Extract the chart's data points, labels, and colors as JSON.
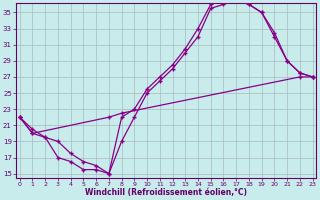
{
  "xlabel": "Windchill (Refroidissement éolien,°C)",
  "background_color": "#c8ecec",
  "line_color": "#880088",
  "grid_color": "#aabbbb",
  "xlim": [
    -0.3,
    23.3
  ],
  "ylim": [
    14.5,
    36.2
  ],
  "yticks": [
    15,
    17,
    19,
    21,
    23,
    25,
    27,
    29,
    31,
    33,
    35
  ],
  "xticks": [
    0,
    1,
    2,
    3,
    4,
    5,
    6,
    7,
    8,
    9,
    10,
    11,
    12,
    13,
    14,
    15,
    16,
    17,
    18,
    19,
    20,
    21,
    22,
    23
  ],
  "curve1_x": [
    0,
    1,
    2,
    3,
    4,
    5,
    6,
    7,
    8,
    9,
    10,
    11,
    12,
    13,
    14,
    15,
    16,
    17,
    18,
    19,
    20,
    21,
    22,
    23
  ],
  "curve1_y": [
    22,
    20,
    19.5,
    17,
    16.5,
    15.5,
    15.5,
    15,
    19,
    22,
    25,
    26.5,
    28,
    30,
    32,
    35.5,
    36,
    36.5,
    36,
    35,
    32,
    29,
    27.5,
    27
  ],
  "curve2_x": [
    0,
    1,
    2,
    3,
    4,
    5,
    6,
    7,
    8,
    9,
    10,
    11,
    12,
    13,
    14,
    15,
    16,
    17,
    18,
    19,
    20,
    21,
    22,
    23
  ],
  "curve2_y": [
    22,
    20.5,
    19.5,
    19,
    17.5,
    16.5,
    16,
    15,
    22,
    23,
    25.5,
    27,
    28.5,
    30.5,
    33,
    36,
    36.5,
    36.5,
    36,
    35,
    32.5,
    29,
    27.5,
    27
  ],
  "curve3_x": [
    0,
    1,
    7,
    8,
    22,
    23
  ],
  "curve3_y": [
    22,
    20,
    22,
    22.5,
    27,
    27
  ]
}
